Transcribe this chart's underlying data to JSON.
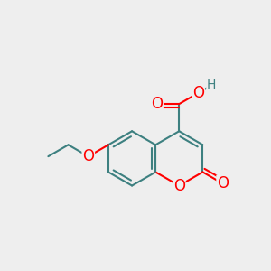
{
  "bg_color": "#eeeeee",
  "bond_color": "#3d8080",
  "atom_colors": {
    "O": "#ff0000",
    "H": "#3d8080",
    "C": "#3d8080"
  },
  "bond_width": 1.5,
  "font_size_O": 12,
  "font_size_H": 10,
  "figsize": [
    3.0,
    3.0
  ],
  "dpi": 100
}
